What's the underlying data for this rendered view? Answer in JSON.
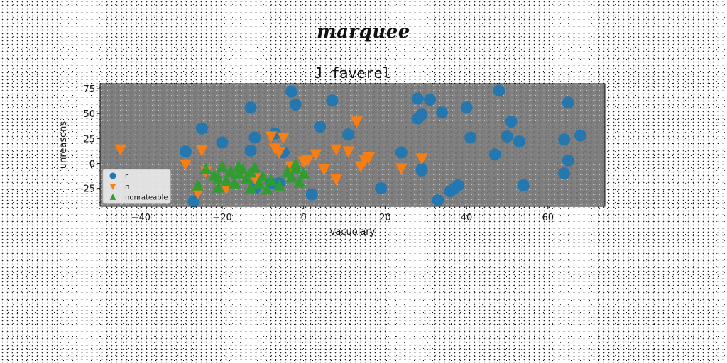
{
  "figure": {
    "suptitle": "marquee"
  },
  "chart_data": {
    "type": "scatter",
    "title": "J faverel",
    "xlabel": "vacuolary",
    "ylabel": "unreasons",
    "xlim": [
      -50,
      74
    ],
    "ylim": [
      -43,
      80
    ],
    "xticks": [
      -40,
      -20,
      0,
      20,
      40,
      60
    ],
    "yticks": [
      -25,
      0,
      25,
      50,
      75
    ],
    "grid": false,
    "legend_position": "lower-left",
    "colors": {
      "plot_background": "#808080"
    },
    "series": [
      {
        "name": "r",
        "marker": "circle",
        "color": "#1f77b4",
        "x": [
          -27,
          -29,
          -25,
          -20,
          -13,
          -13,
          -12,
          -5,
          -3,
          -2,
          -7,
          -6,
          4,
          7,
          11,
          2,
          -8,
          -12,
          24,
          28,
          29,
          28,
          29,
          31,
          34,
          40,
          41,
          47,
          48,
          50,
          51,
          53,
          54,
          64,
          64,
          65,
          65,
          68,
          19,
          29,
          33,
          36,
          37,
          38
        ],
        "y": [
          -38,
          12,
          35,
          21,
          56,
          13,
          26,
          11,
          72,
          59,
          30,
          -20,
          37,
          63,
          29,
          -31,
          -20,
          -25,
          11,
          65,
          49,
          45,
          -6,
          64,
          51,
          56,
          26,
          9,
          73,
          27,
          42,
          22,
          -22,
          24,
          -10,
          3,
          61,
          28,
          -25,
          -7,
          -37,
          -28,
          -25,
          -22
        ]
      },
      {
        "name": "n",
        "marker": "triangle-down",
        "color": "#ff7f0e",
        "x": [
          -45,
          -29,
          -25,
          -24,
          -26,
          -8,
          -7,
          -6,
          -5,
          -3,
          0,
          1,
          3,
          5,
          8,
          8,
          11,
          13,
          14,
          15,
          16,
          24,
          29,
          -19,
          -12
        ],
        "y": [
          14,
          -1,
          13,
          -8,
          -30,
          27,
          15,
          11,
          26,
          -3,
          2,
          3,
          9,
          -6,
          14,
          -16,
          12,
          42,
          -3,
          3,
          6,
          -5,
          5,
          -25,
          -15
        ]
      },
      {
        "name": "nonrateable",
        "marker": "triangle-up",
        "color": "#2ca02c",
        "x": [
          -26,
          -24,
          -22,
          -21,
          -20,
          -19,
          -18,
          -17,
          -16,
          -15,
          -14,
          -13,
          -12,
          -11,
          -10,
          -9,
          -8,
          -6,
          -4,
          -3,
          -2,
          -1,
          0,
          -2,
          -13,
          -16,
          -21
        ],
        "y": [
          -22,
          -6,
          -12,
          -24,
          -3,
          -18,
          -8,
          -20,
          -10,
          -6,
          -15,
          -9,
          -4,
          -20,
          -13,
          -26,
          -17,
          -22,
          -8,
          -14,
          -1,
          -19,
          -10,
          -5,
          -25,
          -3,
          -15
        ]
      }
    ]
  }
}
